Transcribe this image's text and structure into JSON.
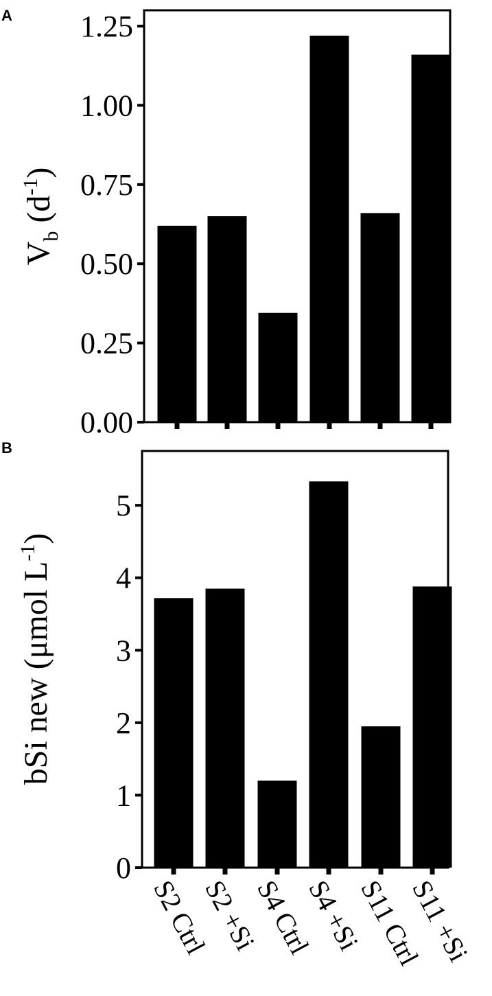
{
  "chart_data": [
    {
      "panel": "A",
      "type": "bar",
      "categories": [
        "S2 Ctrl",
        "S2 +Si",
        "S4 Ctrl",
        "S4 +Si",
        "S11 Ctrl",
        "S11 +Si"
      ],
      "values": [
        0.62,
        0.65,
        0.345,
        1.22,
        0.66,
        1.16
      ],
      "ylabel": {
        "main": "V",
        "sub": "b",
        "unit_open": " (d",
        "sup": "-1",
        "unit_close": ")"
      },
      "ylim": [
        0,
        1.3
      ],
      "yticks": [
        0,
        0.25,
        0.5,
        0.75,
        1.0,
        1.25
      ],
      "ytick_labels": [
        "0.00",
        "0.25",
        "0.50",
        "0.75",
        "1.00",
        "1.25"
      ],
      "bar_color": "#000000",
      "show_category_labels": false
    },
    {
      "panel": "B",
      "type": "bar",
      "categories": [
        "S2 Ctrl",
        "S2 +Si",
        "S4 Ctrl",
        "S4 +Si",
        "S11 Ctrl",
        "S11 +Si"
      ],
      "values": [
        3.72,
        3.85,
        1.2,
        5.33,
        1.95,
        3.88
      ],
      "ylabel": {
        "main": "bSi new (μmol L",
        "sup": "-1",
        "unit_close": ")"
      },
      "ylim": [
        0,
        5.75
      ],
      "yticks": [
        0,
        1,
        2,
        3,
        4,
        5
      ],
      "ytick_labels": [
        "0",
        "1",
        "2",
        "3",
        "4",
        "5"
      ],
      "bar_color": "#000000",
      "show_category_labels": true
    }
  ]
}
